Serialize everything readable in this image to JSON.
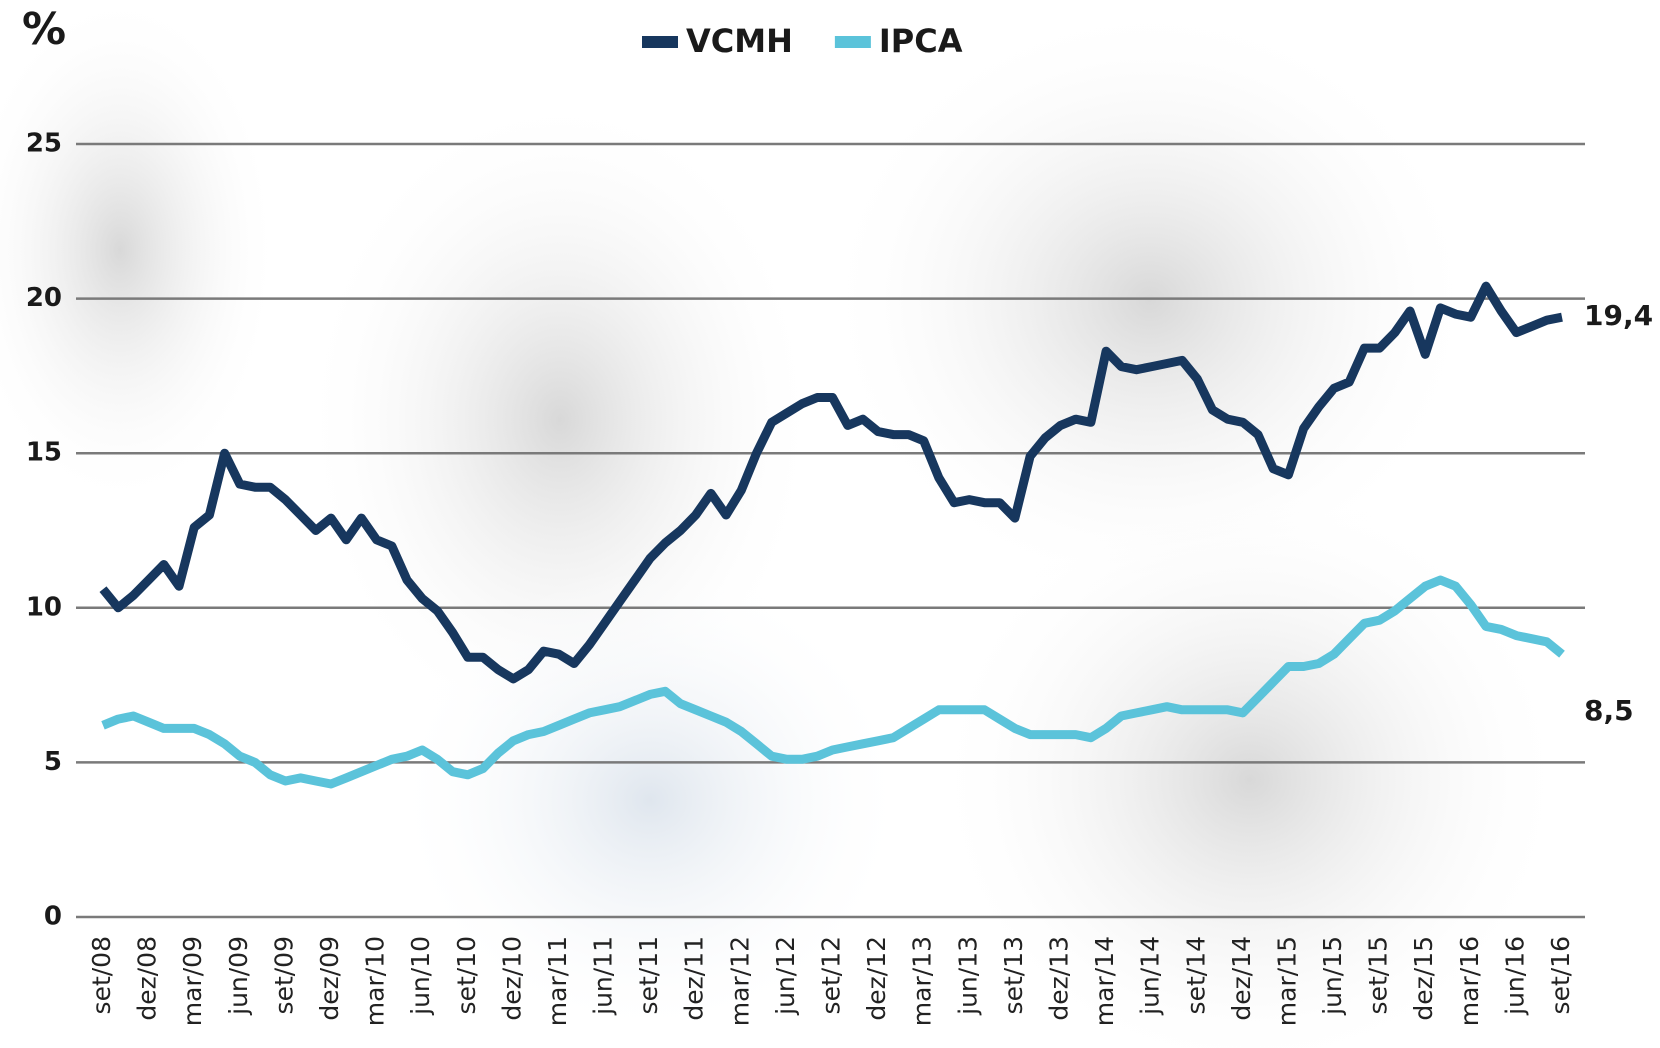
{
  "chart_data": {
    "type": "line",
    "y_label": "%",
    "categories": [
      "set/08",
      null,
      null,
      "dez/08",
      null,
      null,
      "mar/09",
      null,
      null,
      "jun/09",
      null,
      null,
      "set/09",
      null,
      null,
      "dez/09",
      null,
      null,
      "mar/10",
      null,
      null,
      "jun/10",
      null,
      null,
      "set/10",
      null,
      null,
      "dez/10",
      null,
      null,
      "mar/11",
      null,
      null,
      "jun/11",
      null,
      null,
      "set/11",
      null,
      null,
      "dez/11",
      null,
      null,
      "mar/12",
      null,
      null,
      "jun/12",
      null,
      null,
      "set/12",
      null,
      null,
      "dez/12",
      null,
      null,
      "mar/13",
      null,
      null,
      "jun/13",
      null,
      null,
      "set/13",
      null,
      null,
      "dez/13",
      null,
      null,
      "mar/14",
      null,
      null,
      "jun/14",
      null,
      null,
      "set/14",
      null,
      null,
      "dez/14",
      null,
      null,
      "mar/15",
      null,
      null,
      "jun/15",
      null,
      null,
      "set/15",
      null,
      null,
      "dez/15",
      null,
      null,
      "mar/16",
      null,
      null,
      "jun/16",
      null,
      null,
      "set/16"
    ],
    "series": [
      {
        "name": "VCMH",
        "color": "#17375e",
        "values": [
          10.6,
          10.0,
          10.4,
          10.9,
          11.4,
          10.7,
          12.6,
          13.0,
          15.0,
          14.0,
          13.9,
          13.9,
          13.5,
          13.0,
          12.5,
          12.9,
          12.2,
          12.9,
          12.2,
          12.0,
          10.9,
          10.3,
          9.9,
          9.2,
          8.4,
          8.4,
          8.0,
          7.7,
          8.0,
          8.6,
          8.5,
          8.2,
          8.8,
          9.5,
          10.2,
          10.9,
          11.6,
          12.1,
          12.5,
          13.0,
          13.7,
          13.0,
          13.8,
          15.0,
          16.0,
          16.3,
          16.6,
          16.8,
          16.8,
          15.9,
          16.1,
          15.7,
          15.6,
          15.6,
          15.4,
          14.2,
          13.4,
          13.5,
          13.4,
          13.4,
          12.9,
          14.9,
          15.5,
          15.9,
          16.1,
          16.0,
          18.3,
          17.8,
          17.7,
          17.8,
          17.9,
          18.0,
          17.4,
          16.4,
          16.1,
          16.0,
          15.6,
          14.5,
          14.3,
          15.8,
          16.5,
          17.1,
          17.3,
          18.4,
          18.4,
          18.9,
          19.6,
          18.2,
          19.7,
          19.5,
          19.4,
          20.4,
          19.6,
          18.9,
          19.1,
          19.3,
          19.4
        ],
        "value_labels": [
          null,
          null,
          null,
          null,
          null,
          null,
          null,
          null,
          null,
          null,
          null,
          null,
          null,
          null,
          null,
          null,
          null,
          null,
          null,
          null,
          null,
          null,
          null,
          null,
          null,
          null,
          null,
          null,
          null,
          null,
          null,
          null,
          null,
          null,
          null,
          null,
          null,
          null,
          null,
          null,
          null,
          null,
          null,
          null,
          null,
          null,
          null,
          null,
          null,
          null,
          null,
          null,
          null,
          null,
          null,
          null,
          null,
          null,
          null,
          null,
          null,
          null,
          null,
          null,
          null,
          null,
          null,
          null,
          null,
          null,
          null,
          null,
          null,
          null,
          null,
          null,
          null,
          null,
          null,
          null,
          null,
          null,
          null,
          null,
          null,
          null,
          null,
          null,
          null,
          null,
          null,
          null,
          null,
          null,
          null,
          null,
          "19,4"
        ]
      },
      {
        "name": "IPCA",
        "color": "#5bc3da",
        "values": [
          6.2,
          6.4,
          6.5,
          6.3,
          6.1,
          6.1,
          6.1,
          5.9,
          5.6,
          5.2,
          5.0,
          4.6,
          4.4,
          4.5,
          4.4,
          4.3,
          4.5,
          4.7,
          4.9,
          5.1,
          5.2,
          5.4,
          5.1,
          4.7,
          4.6,
          4.8,
          5.3,
          5.7,
          5.9,
          6.0,
          6.2,
          6.4,
          6.6,
          6.7,
          6.8,
          7.0,
          7.2,
          7.3,
          6.9,
          6.7,
          6.5,
          6.3,
          6.0,
          5.6,
          5.2,
          5.1,
          5.1,
          5.2,
          5.4,
          5.5,
          5.6,
          5.7,
          5.8,
          6.1,
          6.4,
          6.7,
          6.7,
          6.7,
          6.7,
          6.4,
          6.1,
          5.9,
          5.9,
          5.9,
          5.9,
          5.8,
          6.1,
          6.5,
          6.6,
          6.7,
          6.8,
          6.7,
          6.7,
          6.7,
          6.7,
          6.6,
          7.1,
          7.6,
          8.1,
          8.1,
          8.2,
          8.5,
          9.0,
          9.5,
          9.6,
          9.9,
          10.3,
          10.7,
          10.9,
          10.7,
          10.1,
          9.4,
          9.3,
          9.1,
          9.0,
          8.9,
          8.5
        ],
        "value_labels": [
          null,
          null,
          null,
          null,
          null,
          null,
          null,
          null,
          null,
          null,
          null,
          null,
          null,
          null,
          null,
          null,
          null,
          null,
          null,
          null,
          null,
          null,
          null,
          null,
          null,
          null,
          null,
          null,
          null,
          null,
          null,
          null,
          null,
          null,
          null,
          null,
          null,
          null,
          null,
          null,
          null,
          null,
          null,
          null,
          null,
          null,
          null,
          null,
          null,
          null,
          null,
          null,
          null,
          null,
          null,
          null,
          null,
          null,
          null,
          null,
          null,
          null,
          null,
          null,
          null,
          null,
          null,
          null,
          null,
          null,
          null,
          null,
          null,
          null,
          null,
          null,
          null,
          null,
          null,
          null,
          null,
          null,
          null,
          null,
          null,
          null,
          null,
          null,
          null,
          null,
          null,
          null,
          null,
          null,
          null,
          null,
          "8,5"
        ]
      }
    ],
    "ylim": [
      0,
      25
    ],
    "yticks": [
      0,
      5,
      10,
      15,
      20,
      25
    ],
    "grid": true,
    "legend": "top"
  }
}
